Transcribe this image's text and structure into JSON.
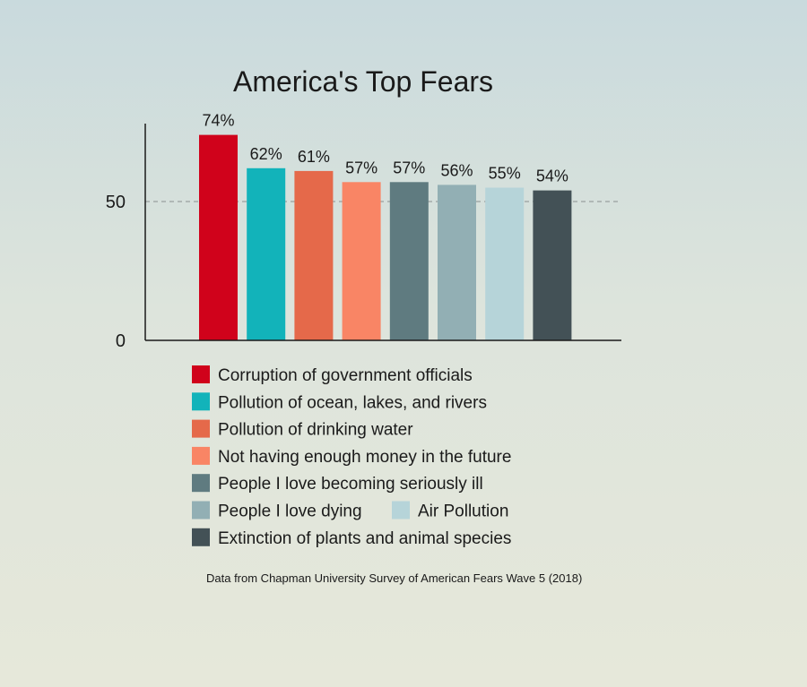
{
  "chart_data": {
    "type": "bar",
    "title": "America's Top Fears",
    "categories": [
      "Corruption of government officials",
      "Pollution of ocean, lakes, and rivers",
      "Pollution of drinking water",
      "Not having enough money in the future",
      "People I love becoming seriously ill",
      "People I love dying",
      "Air Pollution",
      "Extinction of plants and animal species"
    ],
    "values": [
      74,
      62,
      61,
      57,
      57,
      56,
      55,
      54
    ],
    "value_labels": [
      "74%",
      "62%",
      "61%",
      "57%",
      "57%",
      "56%",
      "55%",
      "54%"
    ],
    "colors": [
      "#d0021b",
      "#12b3ba",
      "#e5694a",
      "#f98565",
      "#5f7b80",
      "#92afb4",
      "#b6d4d9",
      "#435156"
    ],
    "yticks": [
      0,
      50
    ],
    "ytick_labels": [
      "0",
      "50"
    ],
    "ylim": [
      0,
      78
    ],
    "reference_line": 50,
    "legend_placement": "bottom",
    "source": "Data from Chapman University Survey of American Fears Wave 5 (2018)",
    "xlabel": "",
    "ylabel": ""
  }
}
